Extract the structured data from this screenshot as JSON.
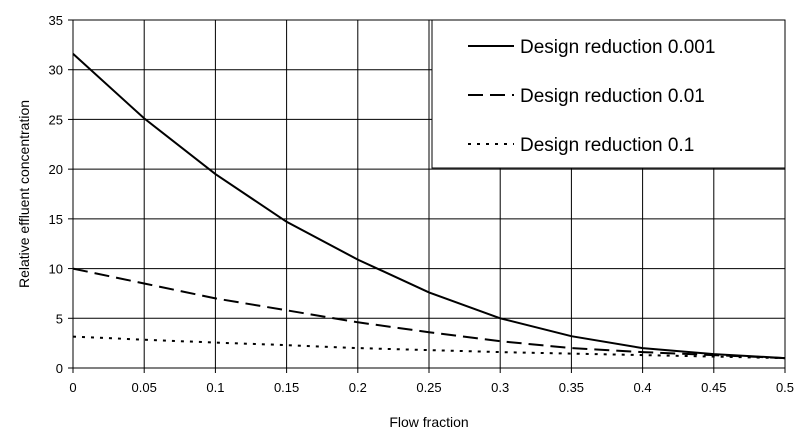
{
  "chart_data": {
    "type": "line",
    "title": "",
    "xlabel": "Flow fraction",
    "ylabel": "Relative effluent concentration",
    "xlim": [
      0,
      0.5
    ],
    "ylim": [
      0,
      35
    ],
    "x_ticks": [
      "0",
      "0.05",
      "0.1",
      "0.15",
      "0.2",
      "0.25",
      "0.3",
      "0.35",
      "0.4",
      "0.45",
      "0.5"
    ],
    "y_ticks": [
      "0",
      "5",
      "10",
      "15",
      "20",
      "25",
      "30",
      "35"
    ],
    "grid": true,
    "legend_position": "top-right",
    "series": [
      {
        "name": "Design reduction 0.001",
        "style": "solid",
        "color": "#000000",
        "points": [
          [
            0,
            31.6
          ],
          [
            0.05,
            25.1
          ],
          [
            0.1,
            19.5
          ],
          [
            0.15,
            14.7
          ],
          [
            0.2,
            10.9
          ],
          [
            0.25,
            7.6
          ],
          [
            0.3,
            5.0
          ],
          [
            0.35,
            3.2
          ],
          [
            0.4,
            2.0
          ],
          [
            0.45,
            1.4
          ],
          [
            0.5,
            1.0
          ]
        ]
      },
      {
        "name": "Design reduction 0.01",
        "style": "dashed",
        "color": "#000000",
        "points": [
          [
            0,
            10.0
          ],
          [
            0.05,
            8.5
          ],
          [
            0.1,
            7.0
          ],
          [
            0.15,
            5.8
          ],
          [
            0.2,
            4.6
          ],
          [
            0.25,
            3.6
          ],
          [
            0.3,
            2.7
          ],
          [
            0.35,
            2.0
          ],
          [
            0.4,
            1.6
          ],
          [
            0.45,
            1.3
          ],
          [
            0.5,
            1.0
          ]
        ]
      },
      {
        "name": "Design reduction 0.1",
        "style": "dotted",
        "color": "#000000",
        "points": [
          [
            0,
            3.16
          ],
          [
            0.05,
            2.85
          ],
          [
            0.1,
            2.55
          ],
          [
            0.15,
            2.3
          ],
          [
            0.2,
            2.0
          ],
          [
            0.25,
            1.8
          ],
          [
            0.3,
            1.6
          ],
          [
            0.35,
            1.45
          ],
          [
            0.4,
            1.3
          ],
          [
            0.45,
            1.15
          ],
          [
            0.5,
            1.0
          ]
        ]
      }
    ]
  }
}
